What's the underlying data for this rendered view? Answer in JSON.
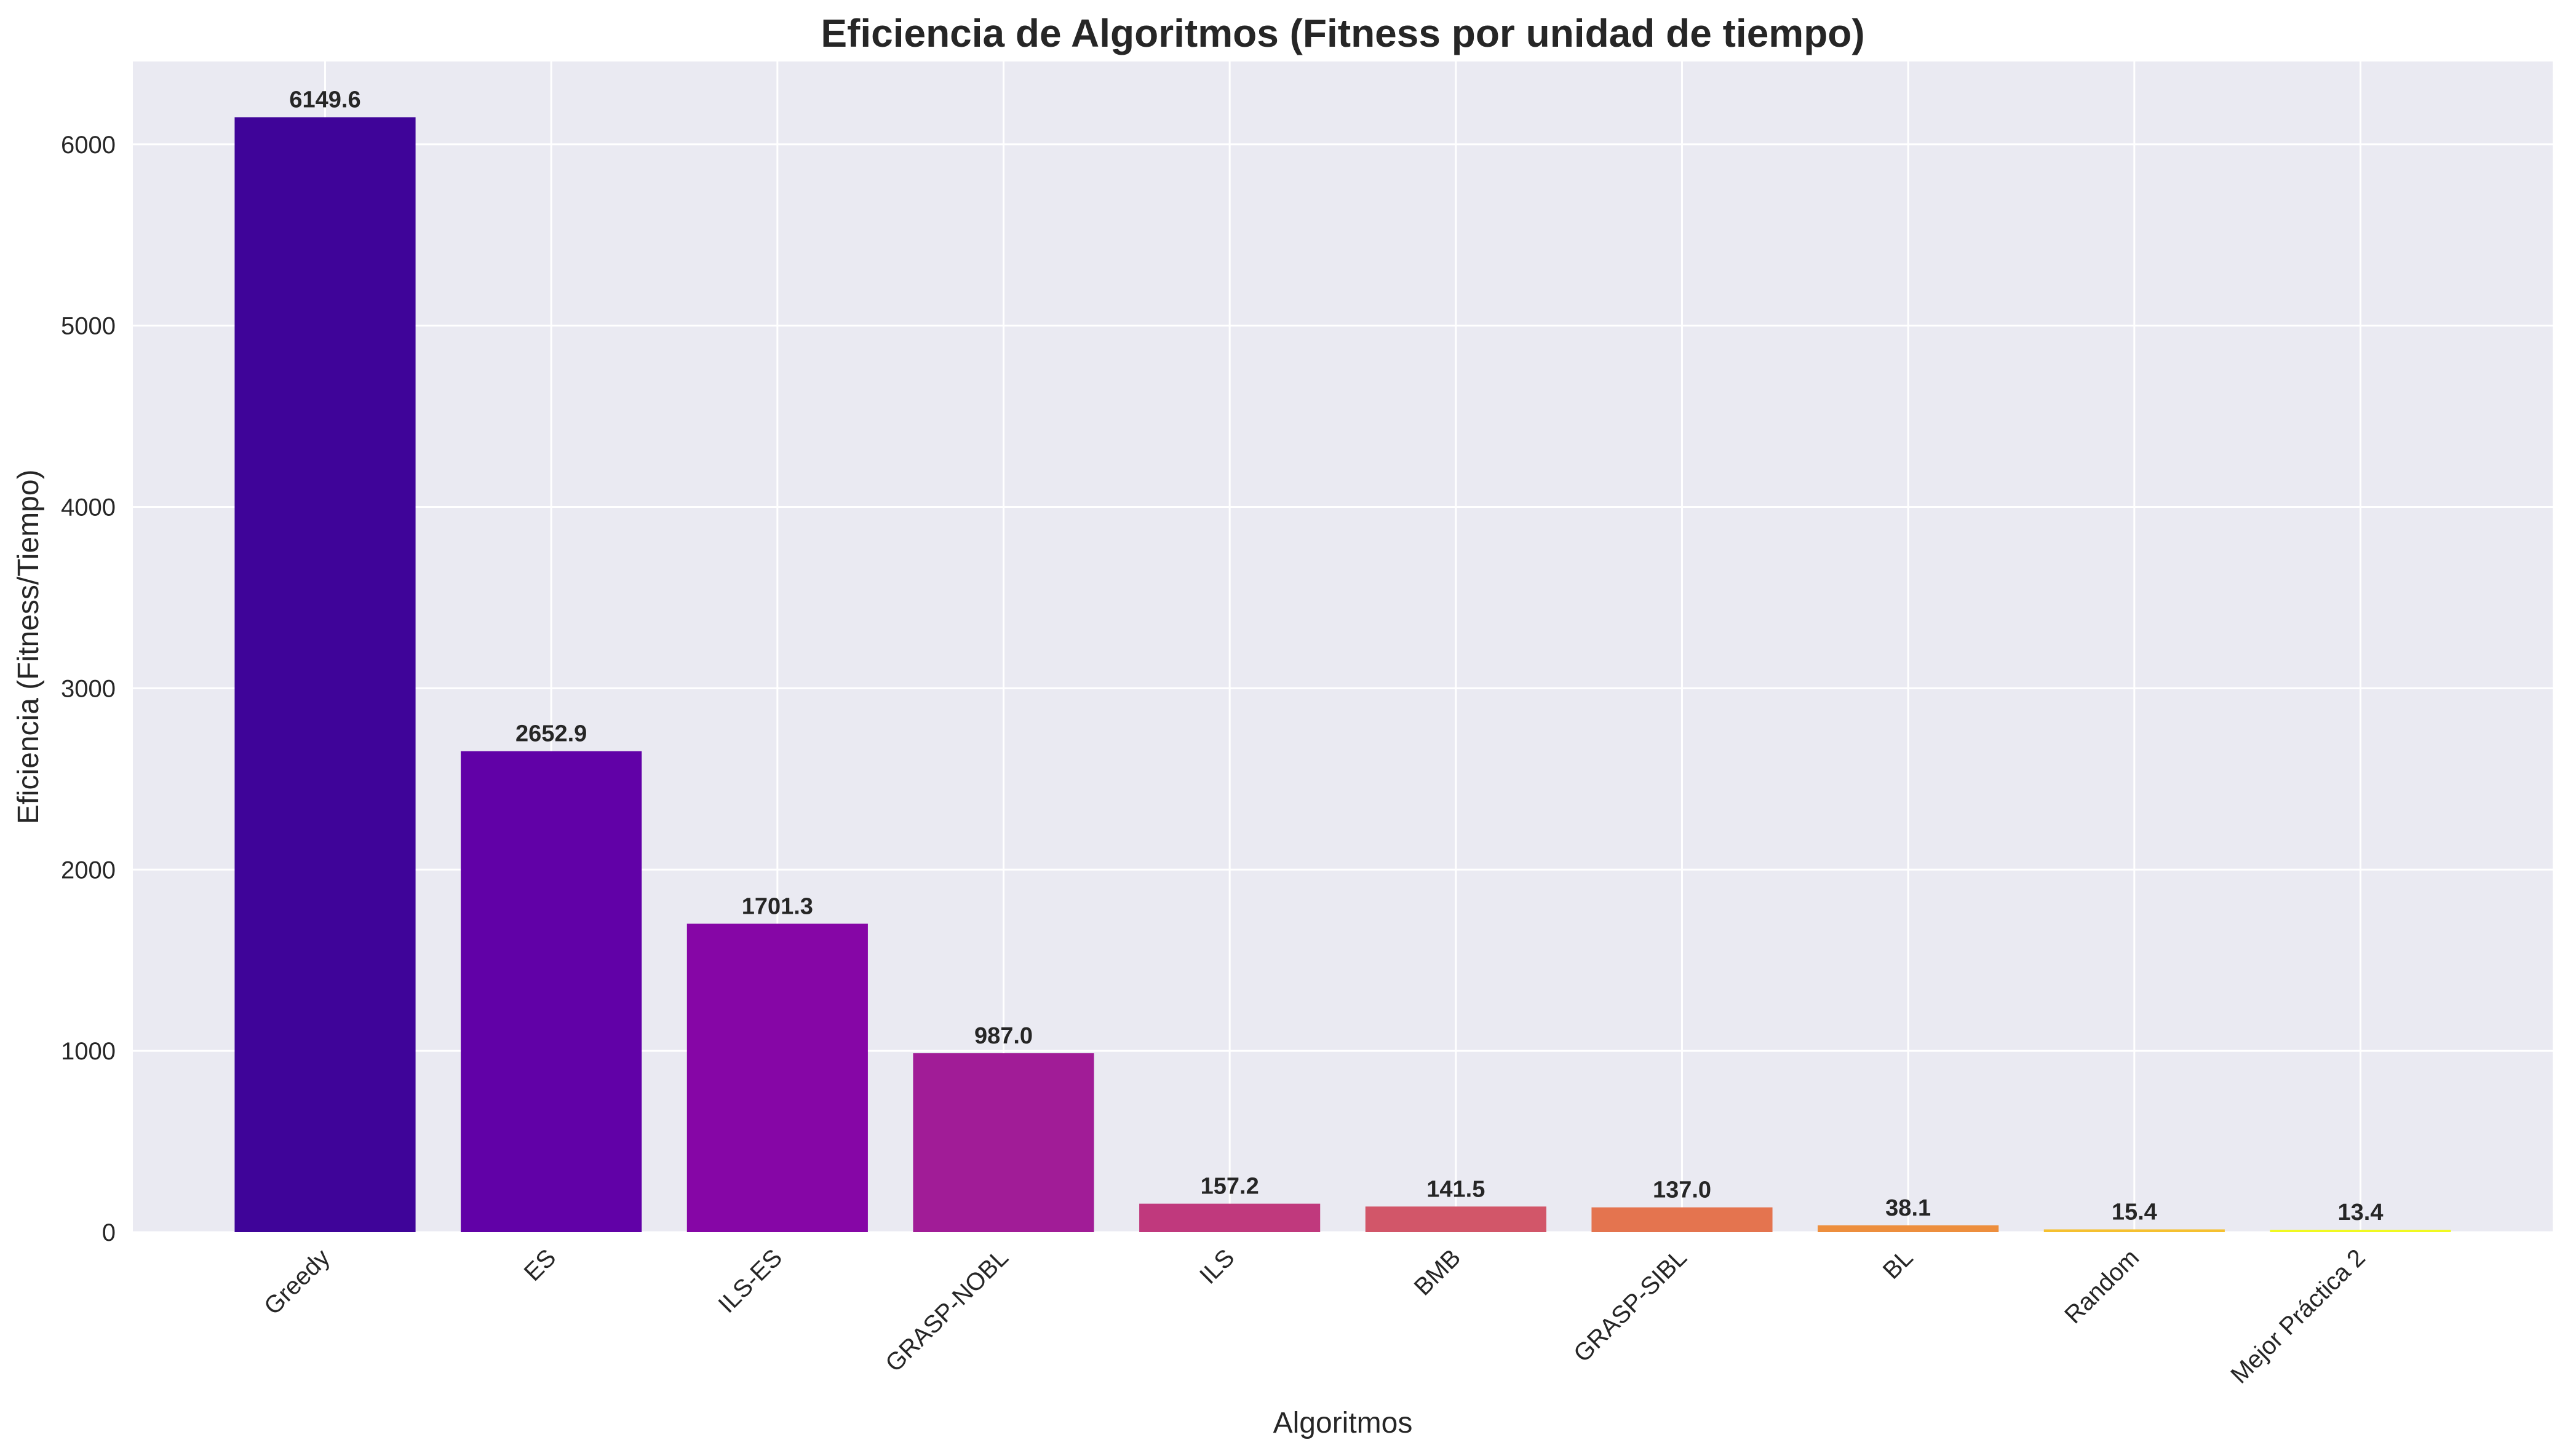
{
  "chart_data": {
    "type": "bar",
    "title": "Eficiencia de Algoritmos (Fitness por unidad de tiempo)",
    "xlabel": "Algoritmos",
    "ylabel": "Eficiencia (Fitness/Tiempo)",
    "categories": [
      "Greedy",
      "ES",
      "ILS-ES",
      "GRASP-NOBL",
      "ILS",
      "BMB",
      "GRASP-SIBL",
      "BL",
      "Random",
      "Mejor Práctica 2"
    ],
    "values": [
      6149.6,
      2652.9,
      1701.3,
      987.0,
      157.2,
      141.5,
      137.0,
      38.1,
      15.4,
      13.4
    ],
    "value_labels": [
      "6149.6",
      "2652.9",
      "1701.3",
      "987.0",
      "157.2",
      "141.5",
      "137.0",
      "38.1",
      "15.4",
      "13.4"
    ],
    "colors": [
      "#3f0499",
      "#6101a7",
      "#8606a6",
      "#a11c97",
      "#c0397d",
      "#d25669",
      "#e4744f",
      "#ed8e3d",
      "#f5c030",
      "#f0f921"
    ],
    "ylim": [
      0,
      6457
    ],
    "yticks": [
      0,
      1000,
      2000,
      3000,
      4000,
      5000,
      6000
    ],
    "ytick_labels": [
      "0",
      "1000",
      "2000",
      "3000",
      "4000",
      "5000",
      "6000"
    ],
    "grid": true,
    "background": "#eaeaf2",
    "grid_color": "#ffffff",
    "text_color": "#262626"
  }
}
